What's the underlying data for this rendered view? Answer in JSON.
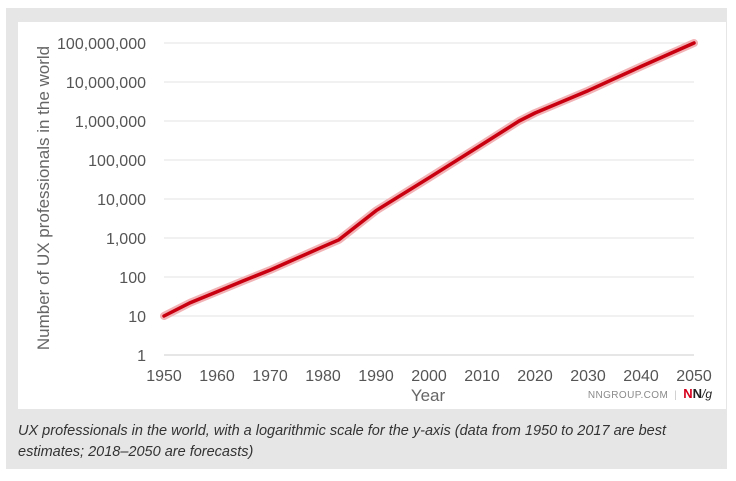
{
  "chart_data": {
    "type": "line",
    "title": "",
    "xlabel": "Year",
    "ylabel": "Number of UX professionals in the world",
    "y_scale": "log",
    "ylim": [
      1,
      100000000
    ],
    "xlim": [
      1950,
      2050
    ],
    "x_ticks": [
      "1950",
      "1960",
      "1970",
      "1980",
      "1990",
      "2000",
      "2010",
      "2020",
      "2030",
      "2040",
      "2050"
    ],
    "y_ticks": [
      "1",
      "10",
      "100",
      "1,000",
      "10,000",
      "100,000",
      "1,000,000",
      "10,000,000",
      "100,000,000"
    ],
    "grid": "horizontal",
    "line_color": "#c8000f",
    "series": [
      {
        "x": [
          1950,
          1955,
          1960,
          1965,
          1970,
          1975,
          1980,
          1983,
          1990,
          2000,
          2010,
          2017,
          2020,
          2030,
          2040,
          2050
        ],
        "values": [
          10,
          22,
          42,
          80,
          150,
          300,
          600,
          900,
          5000,
          35000,
          250000,
          1000000,
          1600000,
          6000000,
          25000000,
          100000000
        ]
      }
    ]
  },
  "footer": {
    "source": "NNGROUP.COM",
    "logo_n1": "N",
    "logo_n2": "N",
    "logo_g": "/g"
  },
  "caption": "UX professionals in the world, with a logarithmic scale for the y-axis (data from 1950 to 2017 are best estimates; 2018–2050 are forecasts)"
}
